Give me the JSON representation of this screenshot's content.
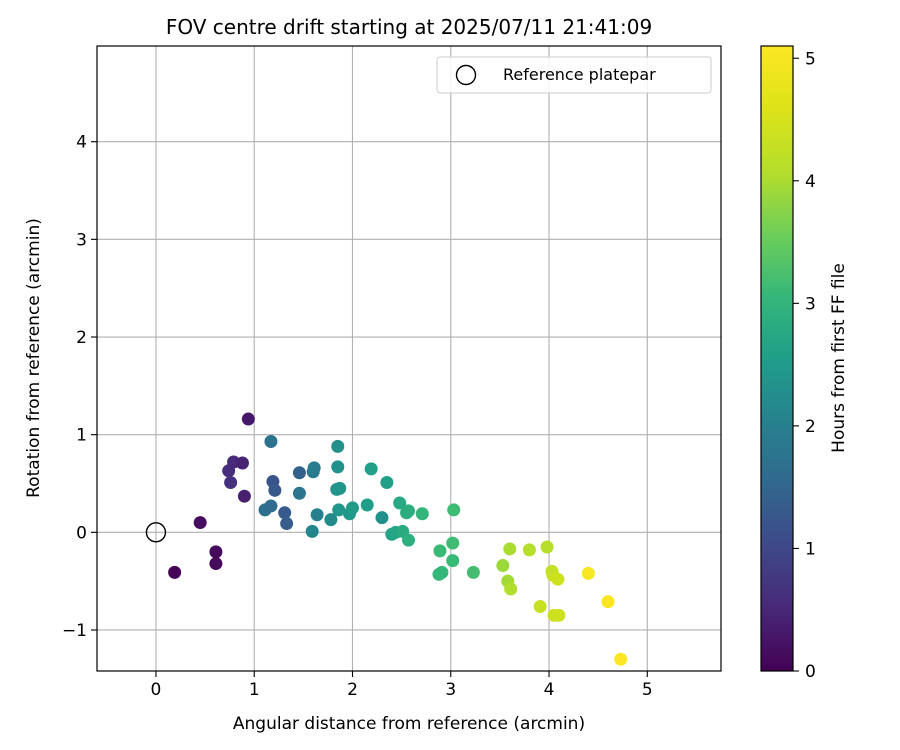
{
  "chart_data": {
    "type": "scatter",
    "title": "FOV centre drift starting at 2025/07/11 21:41:09",
    "xlabel": "Angular distance from reference (arcmin)",
    "ylabel": "Rotation from reference (arcmin)",
    "xlim": [
      -0.6,
      5.75
    ],
    "ylim": [
      -1.42,
      4.98
    ],
    "xticks": [
      0,
      1,
      2,
      3,
      4,
      5
    ],
    "yticks": [
      -1,
      0,
      1,
      2,
      3,
      4
    ],
    "xtick_labels": [
      "0",
      "1",
      "2",
      "3",
      "4",
      "5"
    ],
    "ytick_labels": [
      "−1",
      "0",
      "1",
      "2",
      "3",
      "4"
    ],
    "grid": true,
    "legend": {
      "placement": "top-right",
      "entries": [
        "Reference platepar"
      ]
    },
    "reference_point": {
      "x": 0,
      "y": 0
    },
    "colorbar": {
      "label": "Hours from first FF file",
      "min": 0,
      "max": 5.1,
      "ticks": [
        0,
        1,
        2,
        3,
        4,
        5
      ],
      "tick_labels": [
        "0",
        "1",
        "2",
        "3",
        "4",
        "5"
      ],
      "colormap": "viridis"
    },
    "points": [
      {
        "x": 0.19,
        "y": -0.41,
        "c": 0.05
      },
      {
        "x": 0.45,
        "y": 0.1,
        "c": 0.15
      },
      {
        "x": 0.61,
        "y": -0.2,
        "c": 0.1
      },
      {
        "x": 0.61,
        "y": -0.32,
        "c": 0.12
      },
      {
        "x": 0.94,
        "y": 1.16,
        "c": 0.3
      },
      {
        "x": 0.74,
        "y": 0.63,
        "c": 0.6
      },
      {
        "x": 0.76,
        "y": 0.51,
        "c": 0.65
      },
      {
        "x": 0.79,
        "y": 0.72,
        "c": 0.55
      },
      {
        "x": 0.88,
        "y": 0.71,
        "c": 0.45
      },
      {
        "x": 0.9,
        "y": 0.37,
        "c": 0.4
      },
      {
        "x": 1.11,
        "y": 0.23,
        "c": 1.7
      },
      {
        "x": 1.17,
        "y": 0.27,
        "c": 1.6
      },
      {
        "x": 1.17,
        "y": 0.93,
        "c": 1.75
      },
      {
        "x": 1.19,
        "y": 0.52,
        "c": 1.2
      },
      {
        "x": 1.21,
        "y": 0.43,
        "c": 1.25
      },
      {
        "x": 1.31,
        "y": 0.2,
        "c": 1.3
      },
      {
        "x": 1.33,
        "y": 0.09,
        "c": 1.35
      },
      {
        "x": 1.46,
        "y": 0.61,
        "c": 1.4
      },
      {
        "x": 1.46,
        "y": 0.4,
        "c": 1.8
      },
      {
        "x": 1.6,
        "y": 0.62,
        "c": 1.85
      },
      {
        "x": 1.61,
        "y": 0.66,
        "c": 1.9
      },
      {
        "x": 1.64,
        "y": 0.18,
        "c": 2.0
      },
      {
        "x": 1.59,
        "y": 0.01,
        "c": 2.1
      },
      {
        "x": 1.78,
        "y": 0.13,
        "c": 2.2
      },
      {
        "x": 1.85,
        "y": 0.88,
        "c": 2.3
      },
      {
        "x": 1.85,
        "y": 0.67,
        "c": 2.3
      },
      {
        "x": 1.84,
        "y": 0.44,
        "c": 2.35
      },
      {
        "x": 1.87,
        "y": 0.45,
        "c": 2.4
      },
      {
        "x": 1.86,
        "y": 0.23,
        "c": 2.4
      },
      {
        "x": 1.97,
        "y": 0.19,
        "c": 2.45
      },
      {
        "x": 2.0,
        "y": 0.25,
        "c": 2.5
      },
      {
        "x": 2.15,
        "y": 0.28,
        "c": 2.55
      },
      {
        "x": 2.19,
        "y": 0.65,
        "c": 2.6
      },
      {
        "x": 2.3,
        "y": 0.15,
        "c": 2.3
      },
      {
        "x": 2.35,
        "y": 0.51,
        "c": 2.6
      },
      {
        "x": 2.4,
        "y": -0.02,
        "c": 2.65
      },
      {
        "x": 2.44,
        "y": 0.0,
        "c": 2.7
      },
      {
        "x": 2.48,
        "y": 0.3,
        "c": 2.75
      },
      {
        "x": 2.51,
        "y": 0.01,
        "c": 2.8
      },
      {
        "x": 2.55,
        "y": 0.2,
        "c": 2.85
      },
      {
        "x": 2.57,
        "y": -0.08,
        "c": 2.9
      },
      {
        "x": 2.57,
        "y": 0.22,
        "c": 2.85
      },
      {
        "x": 2.71,
        "y": 0.19,
        "c": 3.0
      },
      {
        "x": 2.88,
        "y": -0.43,
        "c": 3.05
      },
      {
        "x": 2.89,
        "y": -0.19,
        "c": 3.1
      },
      {
        "x": 2.91,
        "y": -0.41,
        "c": 3.05
      },
      {
        "x": 3.02,
        "y": -0.29,
        "c": 3.1
      },
      {
        "x": 3.02,
        "y": -0.11,
        "c": 3.15
      },
      {
        "x": 3.03,
        "y": 0.23,
        "c": 3.15
      },
      {
        "x": 3.23,
        "y": -0.41,
        "c": 3.2
      },
      {
        "x": 3.53,
        "y": -0.34,
        "c": 3.9
      },
      {
        "x": 3.58,
        "y": -0.5,
        "c": 3.95
      },
      {
        "x": 3.6,
        "y": -0.17,
        "c": 4.0
      },
      {
        "x": 3.61,
        "y": -0.58,
        "c": 4.05
      },
      {
        "x": 3.8,
        "y": -0.18,
        "c": 4.1
      },
      {
        "x": 3.91,
        "y": -0.76,
        "c": 4.3
      },
      {
        "x": 3.98,
        "y": -0.15,
        "c": 4.1
      },
      {
        "x": 4.03,
        "y": -0.4,
        "c": 4.25
      },
      {
        "x": 4.04,
        "y": -0.44,
        "c": 4.3
      },
      {
        "x": 4.05,
        "y": -0.85,
        "c": 4.35
      },
      {
        "x": 4.09,
        "y": -0.48,
        "c": 4.4
      },
      {
        "x": 4.1,
        "y": -0.85,
        "c": 4.4
      },
      {
        "x": 4.4,
        "y": -0.42,
        "c": 5.0
      },
      {
        "x": 4.6,
        "y": -0.71,
        "c": 5.05
      },
      {
        "x": 4.73,
        "y": -1.3,
        "c": 5.1
      }
    ]
  }
}
